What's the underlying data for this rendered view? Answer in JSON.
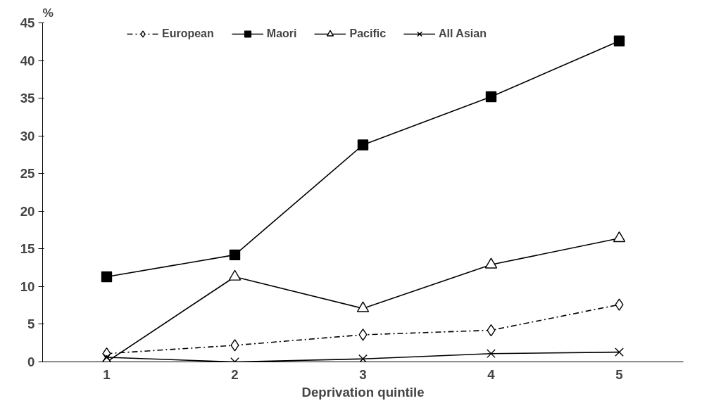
{
  "chart_data": {
    "type": "line",
    "xlabel": "Deprivation quintile",
    "ylabel": "%",
    "categories": [
      "1",
      "2",
      "3",
      "4",
      "5"
    ],
    "ylim": [
      0,
      45
    ],
    "yticks": [
      0,
      5,
      10,
      15,
      20,
      25,
      30,
      35,
      40,
      45
    ],
    "grid": false,
    "legend": "top",
    "series": [
      {
        "name": "European",
        "color": "#000000",
        "marker": "diamond",
        "line_style": "dashed",
        "values": [
          1.1,
          2.2,
          3.6,
          4.2,
          7.6
        ]
      },
      {
        "name": "Maori",
        "color": "#000000",
        "marker": "square",
        "line_style": "solid",
        "values": [
          11.3,
          14.2,
          28.8,
          35.2,
          42.6
        ]
      },
      {
        "name": "Pacific",
        "color": "#000000",
        "marker": "triangle",
        "line_style": "solid",
        "values": [
          0,
          11.3,
          7.1,
          12.9,
          16.4
        ]
      },
      {
        "name": "All Asian",
        "color": "#000000",
        "marker": "cross",
        "line_style": "solid",
        "values": [
          0.6,
          0,
          0.4,
          1.1,
          1.3
        ]
      }
    ]
  }
}
